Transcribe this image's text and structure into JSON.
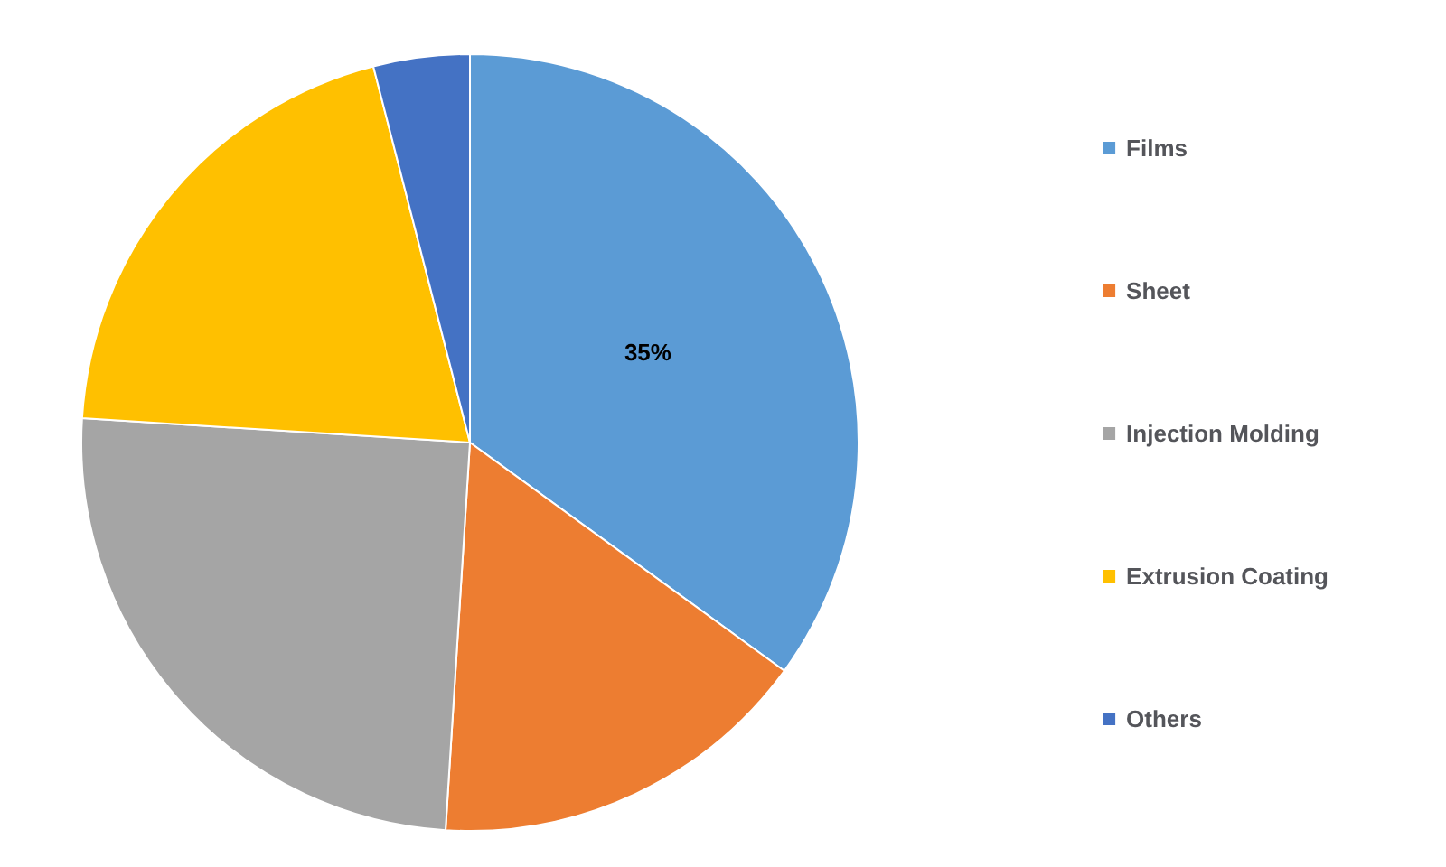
{
  "chart_data": {
    "type": "pie",
    "categories": [
      "Films",
      "Sheet",
      "Injection Molding",
      "Extrusion Coating",
      "Others"
    ],
    "values": [
      35,
      16,
      25,
      20,
      4
    ],
    "colors": [
      "#5b9bd5",
      "#ed7d31",
      "#a5a5a5",
      "#ffc000",
      "#4472c4"
    ],
    "value_labels": [
      "35%",
      null,
      null,
      null,
      null
    ],
    "legend": "right"
  }
}
